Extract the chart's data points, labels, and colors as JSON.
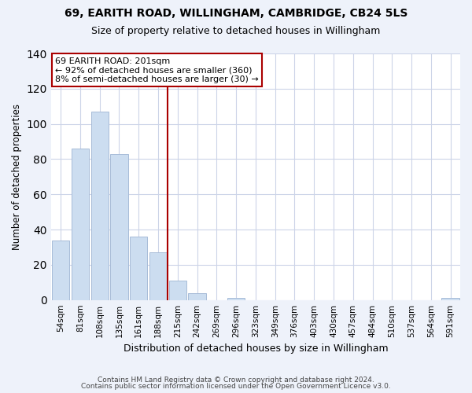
{
  "title": "69, EARITH ROAD, WILLINGHAM, CAMBRIDGE, CB24 5LS",
  "subtitle": "Size of property relative to detached houses in Willingham",
  "xlabel": "Distribution of detached houses by size in Willingham",
  "ylabel": "Number of detached properties",
  "bar_labels": [
    "54sqm",
    "81sqm",
    "108sqm",
    "135sqm",
    "161sqm",
    "188sqm",
    "215sqm",
    "242sqm",
    "269sqm",
    "296sqm",
    "323sqm",
    "349sqm",
    "376sqm",
    "403sqm",
    "430sqm",
    "457sqm",
    "484sqm",
    "510sqm",
    "537sqm",
    "564sqm",
    "591sqm"
  ],
  "bar_values": [
    34,
    86,
    107,
    83,
    36,
    27,
    11,
    4,
    0,
    1,
    0,
    0,
    0,
    0,
    0,
    0,
    0,
    0,
    0,
    0,
    1
  ],
  "bar_color": "#ccddf0",
  "bar_edgecolor": "#a8bcd8",
  "vline_x": 6.0,
  "vline_color": "#aa0000",
  "annotation_title": "69 EARITH ROAD: 201sqm",
  "annotation_line1": "← 92% of detached houses are smaller (360)",
  "annotation_line2": "8% of semi-detached houses are larger (30) →",
  "annotation_box_edgecolor": "#aa0000",
  "ylim": [
    0,
    140
  ],
  "yticks": [
    0,
    20,
    40,
    60,
    80,
    100,
    120,
    140
  ],
  "footer1": "Contains HM Land Registry data © Crown copyright and database right 2024.",
  "footer2": "Contains public sector information licensed under the Open Government Licence v3.0.",
  "background_color": "#eef2fa",
  "plot_background": "#ffffff",
  "grid_color": "#ccd4e8"
}
